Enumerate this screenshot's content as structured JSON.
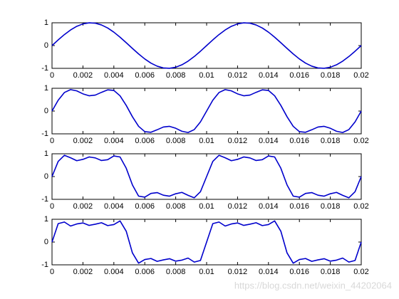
{
  "watermark": "https://blog.csdn.net/weixin_44202064",
  "chart_data": [
    {
      "type": "line",
      "x": [
        0,
        0.0004,
        0.0008,
        0.0012,
        0.0016,
        0.002,
        0.0024,
        0.0028,
        0.0032,
        0.0036,
        0.004,
        0.0044,
        0.0048,
        0.0052,
        0.0056,
        0.006,
        0.0064,
        0.0068,
        0.0072,
        0.0076,
        0.008,
        0.0084,
        0.0088,
        0.0092,
        0.0096,
        0.01,
        0.0104,
        0.0108,
        0.0112,
        0.0116,
        0.012,
        0.0124,
        0.0128,
        0.0132,
        0.0136,
        0.014,
        0.0144,
        0.0148,
        0.0152,
        0.0156,
        0.016,
        0.0164,
        0.0168,
        0.0172,
        0.0176,
        0.018,
        0.0184,
        0.0188,
        0.0192,
        0.0196,
        0.02
      ],
      "series": [
        {
          "color": "#0000cc",
          "values": [
            0,
            0.2487,
            0.4818,
            0.6845,
            0.8443,
            0.9511,
            0.998,
            0.9823,
            0.9048,
            0.7705,
            0.5878,
            0.3681,
            0.1253,
            -0.1253,
            -0.3681,
            -0.5878,
            -0.7705,
            -0.9048,
            -0.9823,
            -0.998,
            -0.9511,
            -0.8443,
            -0.6845,
            -0.4818,
            -0.2487,
            0,
            0.2487,
            0.4818,
            0.6845,
            0.8443,
            0.9511,
            0.998,
            0.9823,
            0.9048,
            0.7705,
            0.5878,
            0.3681,
            0.1253,
            -0.1253,
            -0.3681,
            -0.5878,
            -0.7705,
            -0.9048,
            -0.9823,
            -0.998,
            -0.9511,
            -0.8443,
            -0.6845,
            -0.4818,
            -0.2487,
            0
          ]
        }
      ],
      "xlim": [
        0,
        0.02
      ],
      "ylim": [
        -1,
        1
      ],
      "xticks": [
        0,
        0.002,
        0.004,
        0.006,
        0.008,
        0.01,
        0.012,
        0.014,
        0.016,
        0.018,
        0.02
      ],
      "yticks": [
        -1,
        0,
        1
      ]
    },
    {
      "type": "line",
      "x": [
        0,
        0.0004,
        0.0008,
        0.0012,
        0.0016,
        0.002,
        0.0024,
        0.0028,
        0.0032,
        0.0036,
        0.004,
        0.0044,
        0.0048,
        0.0052,
        0.0056,
        0.006,
        0.0064,
        0.0068,
        0.0072,
        0.0076,
        0.008,
        0.0084,
        0.0088,
        0.0092,
        0.0096,
        0.01,
        0.0104,
        0.0108,
        0.0112,
        0.0116,
        0.012,
        0.0124,
        0.0128,
        0.0132,
        0.0136,
        0.014,
        0.0144,
        0.0148,
        0.0152,
        0.0156,
        0.016,
        0.0164,
        0.0168,
        0.0172,
        0.0176,
        0.018,
        0.0184,
        0.0188,
        0.0192,
        0.0196,
        0.02
      ],
      "series": [
        {
          "color": "#0000cc",
          "values": [
            0,
            0.4769,
            0.8145,
            0.9413,
            0.8861,
            0.7552,
            0.6706,
            0.7009,
            0.8219,
            0.9311,
            0.9048,
            0.6697,
            0.248,
            -0.248,
            -0.6697,
            -0.9048,
            -0.9311,
            -0.8219,
            -0.7009,
            -0.6706,
            -0.7552,
            -0.8861,
            -0.9413,
            -0.8145,
            -0.4769,
            0,
            0.4769,
            0.8145,
            0.9413,
            0.8861,
            0.7552,
            0.6706,
            0.7009,
            0.8219,
            0.9311,
            0.9048,
            0.6697,
            0.248,
            -0.248,
            -0.6697,
            -0.9048,
            -0.9311,
            -0.8219,
            -0.7009,
            -0.6706,
            -0.7552,
            -0.8861,
            -0.9413,
            -0.8145,
            -0.4769,
            0
          ]
        }
      ],
      "xlim": [
        0,
        0.02
      ],
      "ylim": [
        -1,
        1
      ],
      "xticks": [
        0,
        0.002,
        0.004,
        0.006,
        0.008,
        0.01,
        0.012,
        0.014,
        0.016,
        0.018,
        0.02
      ],
      "yticks": [
        -1,
        0,
        1
      ]
    },
    {
      "type": "line",
      "x": [
        0,
        0.0004,
        0.0008,
        0.0012,
        0.0016,
        0.002,
        0.0024,
        0.0028,
        0.0032,
        0.0036,
        0.004,
        0.0044,
        0.0048,
        0.0052,
        0.0056,
        0.006,
        0.0064,
        0.0068,
        0.0072,
        0.0076,
        0.008,
        0.0084,
        0.0088,
        0.0092,
        0.0096,
        0.01,
        0.0104,
        0.0108,
        0.0112,
        0.0116,
        0.012,
        0.0124,
        0.0128,
        0.0132,
        0.0136,
        0.014,
        0.0144,
        0.0148,
        0.0152,
        0.0156,
        0.016,
        0.0164,
        0.0168,
        0.0172,
        0.0176,
        0.018,
        0.0184,
        0.0188,
        0.0192,
        0.0196,
        0.02
      ],
      "series": [
        {
          "color": "#0000cc",
          "values": [
            0,
            0.6671,
            0.9321,
            0.8237,
            0.6959,
            0.7552,
            0.8608,
            0.8185,
            0.7043,
            0.7409,
            0.9048,
            0.8599,
            0.3656,
            -0.3656,
            -0.8599,
            -0.9048,
            -0.7409,
            -0.7043,
            -0.8185,
            -0.8608,
            -0.7552,
            -0.6959,
            -0.8237,
            -0.9321,
            -0.6671,
            0,
            0.6671,
            0.9321,
            0.8237,
            0.6959,
            0.7552,
            0.8608,
            0.8185,
            0.7043,
            0.7409,
            0.9048,
            0.8599,
            0.3656,
            -0.3656,
            -0.8599,
            -0.9048,
            -0.7409,
            -0.7043,
            -0.8185,
            -0.8608,
            -0.7552,
            -0.6959,
            -0.8237,
            -0.9321,
            -0.6671,
            0
          ]
        }
      ],
      "xlim": [
        0,
        0.02
      ],
      "ylim": [
        -1,
        1
      ],
      "xticks": [
        0,
        0.002,
        0.004,
        0.006,
        0.008,
        0.01,
        0.012,
        0.014,
        0.016,
        0.018,
        0.02
      ],
      "yticks": [
        -1,
        0,
        1
      ]
    },
    {
      "type": "line",
      "x": [
        0,
        0.0004,
        0.0008,
        0.0012,
        0.0016,
        0.002,
        0.0024,
        0.0028,
        0.0032,
        0.0036,
        0.004,
        0.0044,
        0.0048,
        0.0052,
        0.0056,
        0.006,
        0.0064,
        0.0068,
        0.0072,
        0.0076,
        0.008,
        0.0084,
        0.0088,
        0.0092,
        0.0096,
        0.01,
        0.0104,
        0.0108,
        0.0112,
        0.0116,
        0.012,
        0.0124,
        0.0128,
        0.0132,
        0.0136,
        0.014,
        0.0144,
        0.0148,
        0.0152,
        0.0156,
        0.016,
        0.0164,
        0.0168,
        0.0172,
        0.0176,
        0.018,
        0.0184,
        0.0188,
        0.0192,
        0.0196,
        0.02
      ],
      "series": [
        {
          "color": "#0000cc",
          "values": [
            0,
            0.8074,
            0.8795,
            0.7031,
            0.7937,
            0.8392,
            0.7315,
            0.783,
            0.8469,
            0.723,
            0.7689,
            0.9287,
            0.4757,
            -0.4757,
            -0.9287,
            -0.7689,
            -0.723,
            -0.8469,
            -0.783,
            -0.7315,
            -0.8392,
            -0.7937,
            -0.7031,
            -0.8795,
            -0.8074,
            0,
            0.8074,
            0.8795,
            0.7031,
            0.7937,
            0.8392,
            0.7315,
            0.783,
            0.8469,
            0.723,
            0.7689,
            0.9287,
            0.4757,
            -0.4757,
            -0.9287,
            -0.7689,
            -0.723,
            -0.8469,
            -0.783,
            -0.7315,
            -0.8392,
            -0.7937,
            -0.7031,
            -0.8795,
            -0.8074,
            0
          ]
        }
      ],
      "xlim": [
        0,
        0.02
      ],
      "ylim": [
        -1,
        1
      ],
      "xticks": [
        0,
        0.002,
        0.004,
        0.006,
        0.008,
        0.01,
        0.012,
        0.014,
        0.016,
        0.018,
        0.02
      ],
      "yticks": [
        -1,
        0,
        1
      ]
    }
  ]
}
